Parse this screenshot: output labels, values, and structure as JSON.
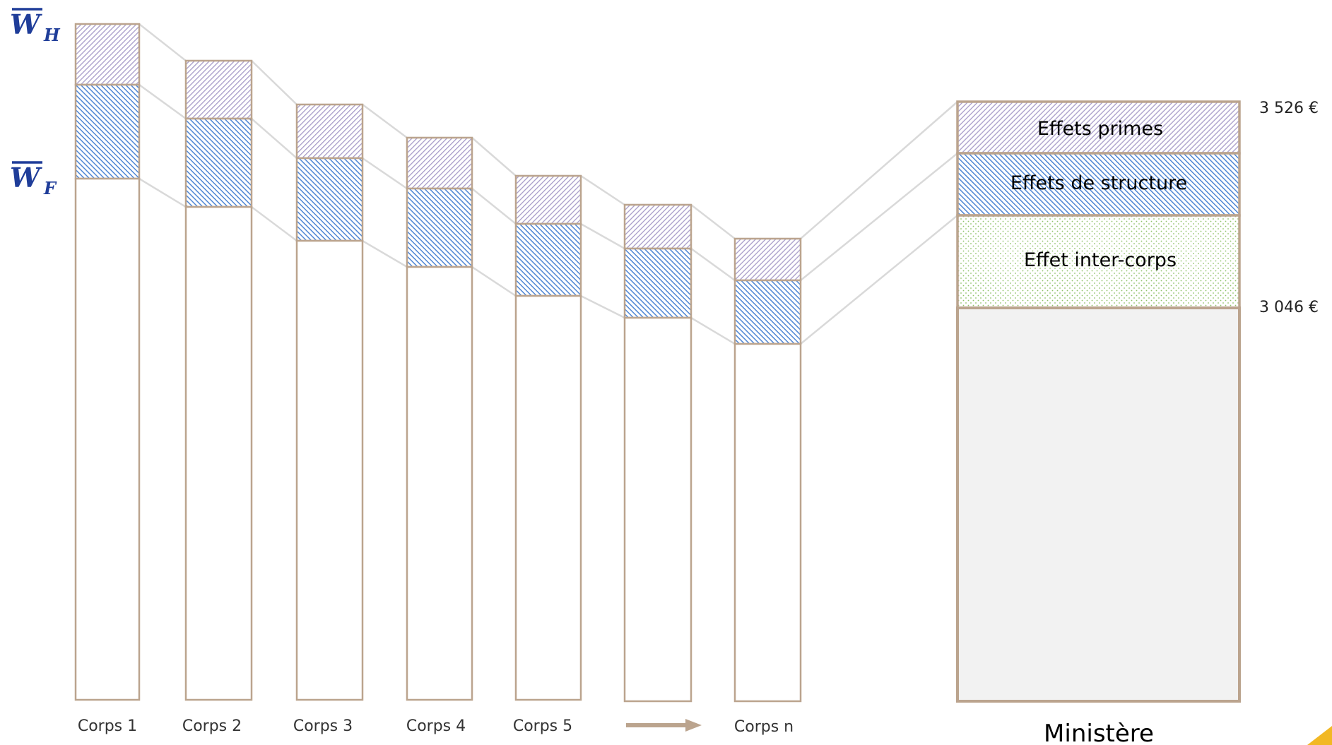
{
  "wh_label": {
    "main": "W",
    "sub": "H"
  },
  "wf_label": {
    "main": "W",
    "sub": "F"
  },
  "corps": [
    {
      "label": "Corps 1"
    },
    {
      "label": "Corps 2"
    },
    {
      "label": "Corps 3"
    },
    {
      "label": "Corps 4"
    },
    {
      "label": "Corps 5"
    },
    {
      "label": ""
    },
    {
      "label": "Corps n"
    }
  ],
  "ministere": {
    "label": "Ministère",
    "segments": {
      "primes": "Effets primes",
      "structure": "Effets de structure",
      "inter_corps": "Effet inter-corps"
    },
    "top_value": "3 526 €",
    "base_value": "3 046 €"
  },
  "colors": {
    "border": "#bba48e",
    "primes": "#a79bc9",
    "structure": "#4f86d4",
    "inter_corps": "#8fc26a",
    "base_fill": "#f2f2f2",
    "connector": "#d9d9d9",
    "label_blue": "#1f3d99",
    "corner_triangle": "#f2b824"
  }
}
